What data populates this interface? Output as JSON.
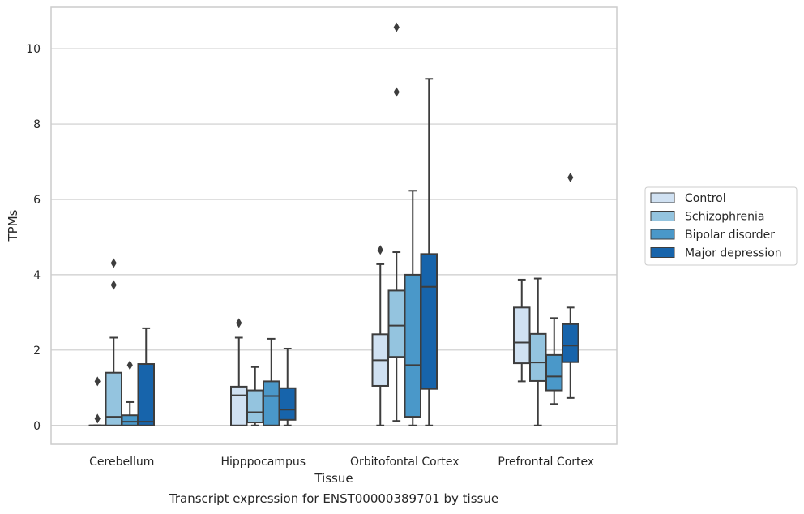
{
  "caption": "Transcript expression for ENST00000389701 by tissue",
  "chart_data": {
    "type": "box",
    "title": "",
    "xlabel": "Tissue",
    "ylabel": "TPMs",
    "ylim": [
      -0.5,
      11.1
    ],
    "yticks": [
      0,
      2,
      4,
      6,
      8,
      10
    ],
    "grid": "horizontal",
    "legend_placement": "right",
    "categories": [
      "Cerebellum",
      "Hipppocampus",
      "Orbitofontal Cortex",
      "Prefrontal Cortex"
    ],
    "series": [
      {
        "name": "Control",
        "color": "#d0e1f2",
        "boxes": [
          {
            "whislo": 0,
            "q1": 0,
            "med": 0,
            "q3": 0,
            "whishi": 0,
            "fliers": [
              0.18,
              1.17
            ]
          },
          {
            "whislo": 0,
            "q1": 0,
            "med": 0.8,
            "q3": 1.03,
            "whishi": 2.33,
            "fliers": [
              2.72
            ]
          },
          {
            "whislo": 0,
            "q1": 1.05,
            "med": 1.73,
            "q3": 2.42,
            "whishi": 4.28,
            "fliers": [
              4.66
            ]
          },
          {
            "whislo": 1.17,
            "q1": 1.65,
            "med": 2.2,
            "q3": 3.13,
            "whishi": 3.87,
            "fliers": []
          }
        ]
      },
      {
        "name": "Schizophrenia",
        "color": "#94c4df",
        "boxes": [
          {
            "whislo": 0,
            "q1": 0,
            "med": 0.23,
            "q3": 1.4,
            "whishi": 2.33,
            "fliers": [
              3.73,
              4.31
            ]
          },
          {
            "whislo": 0,
            "q1": 0.08,
            "med": 0.35,
            "q3": 0.93,
            "whishi": 1.55,
            "fliers": []
          },
          {
            "whislo": 0.12,
            "q1": 1.82,
            "med": 2.65,
            "q3": 3.58,
            "whishi": 4.6,
            "fliers": [
              8.85,
              10.57
            ]
          },
          {
            "whislo": 0,
            "q1": 1.18,
            "med": 1.67,
            "q3": 2.43,
            "whishi": 3.9,
            "fliers": []
          }
        ]
      },
      {
        "name": "Bipolar disorder",
        "color": "#4a98c9",
        "boxes": [
          {
            "whislo": 0,
            "q1": 0,
            "med": 0.1,
            "q3": 0.27,
            "whishi": 0.62,
            "fliers": [
              1.6
            ]
          },
          {
            "whislo": 0,
            "q1": 0,
            "med": 0.78,
            "q3": 1.17,
            "whishi": 2.3,
            "fliers": []
          },
          {
            "whislo": 0,
            "q1": 0.23,
            "med": 1.6,
            "q3": 4.0,
            "whishi": 6.23,
            "fliers": []
          },
          {
            "whislo": 0.57,
            "q1": 0.93,
            "med": 1.3,
            "q3": 1.87,
            "whishi": 2.85,
            "fliers": []
          }
        ]
      },
      {
        "name": "Major depression",
        "color": "#1764ab",
        "boxes": [
          {
            "whislo": 0,
            "q1": 0,
            "med": 0.1,
            "q3": 1.63,
            "whishi": 2.58,
            "fliers": []
          },
          {
            "whislo": 0,
            "q1": 0.15,
            "med": 0.42,
            "q3": 0.99,
            "whishi": 2.04,
            "fliers": []
          },
          {
            "whislo": 0,
            "q1": 0.97,
            "med": 3.68,
            "q3": 4.55,
            "whishi": 9.2,
            "fliers": []
          },
          {
            "whislo": 0.73,
            "q1": 1.68,
            "med": 2.12,
            "q3": 2.69,
            "whishi": 3.13,
            "fliers": [
              6.58
            ]
          }
        ]
      }
    ]
  }
}
